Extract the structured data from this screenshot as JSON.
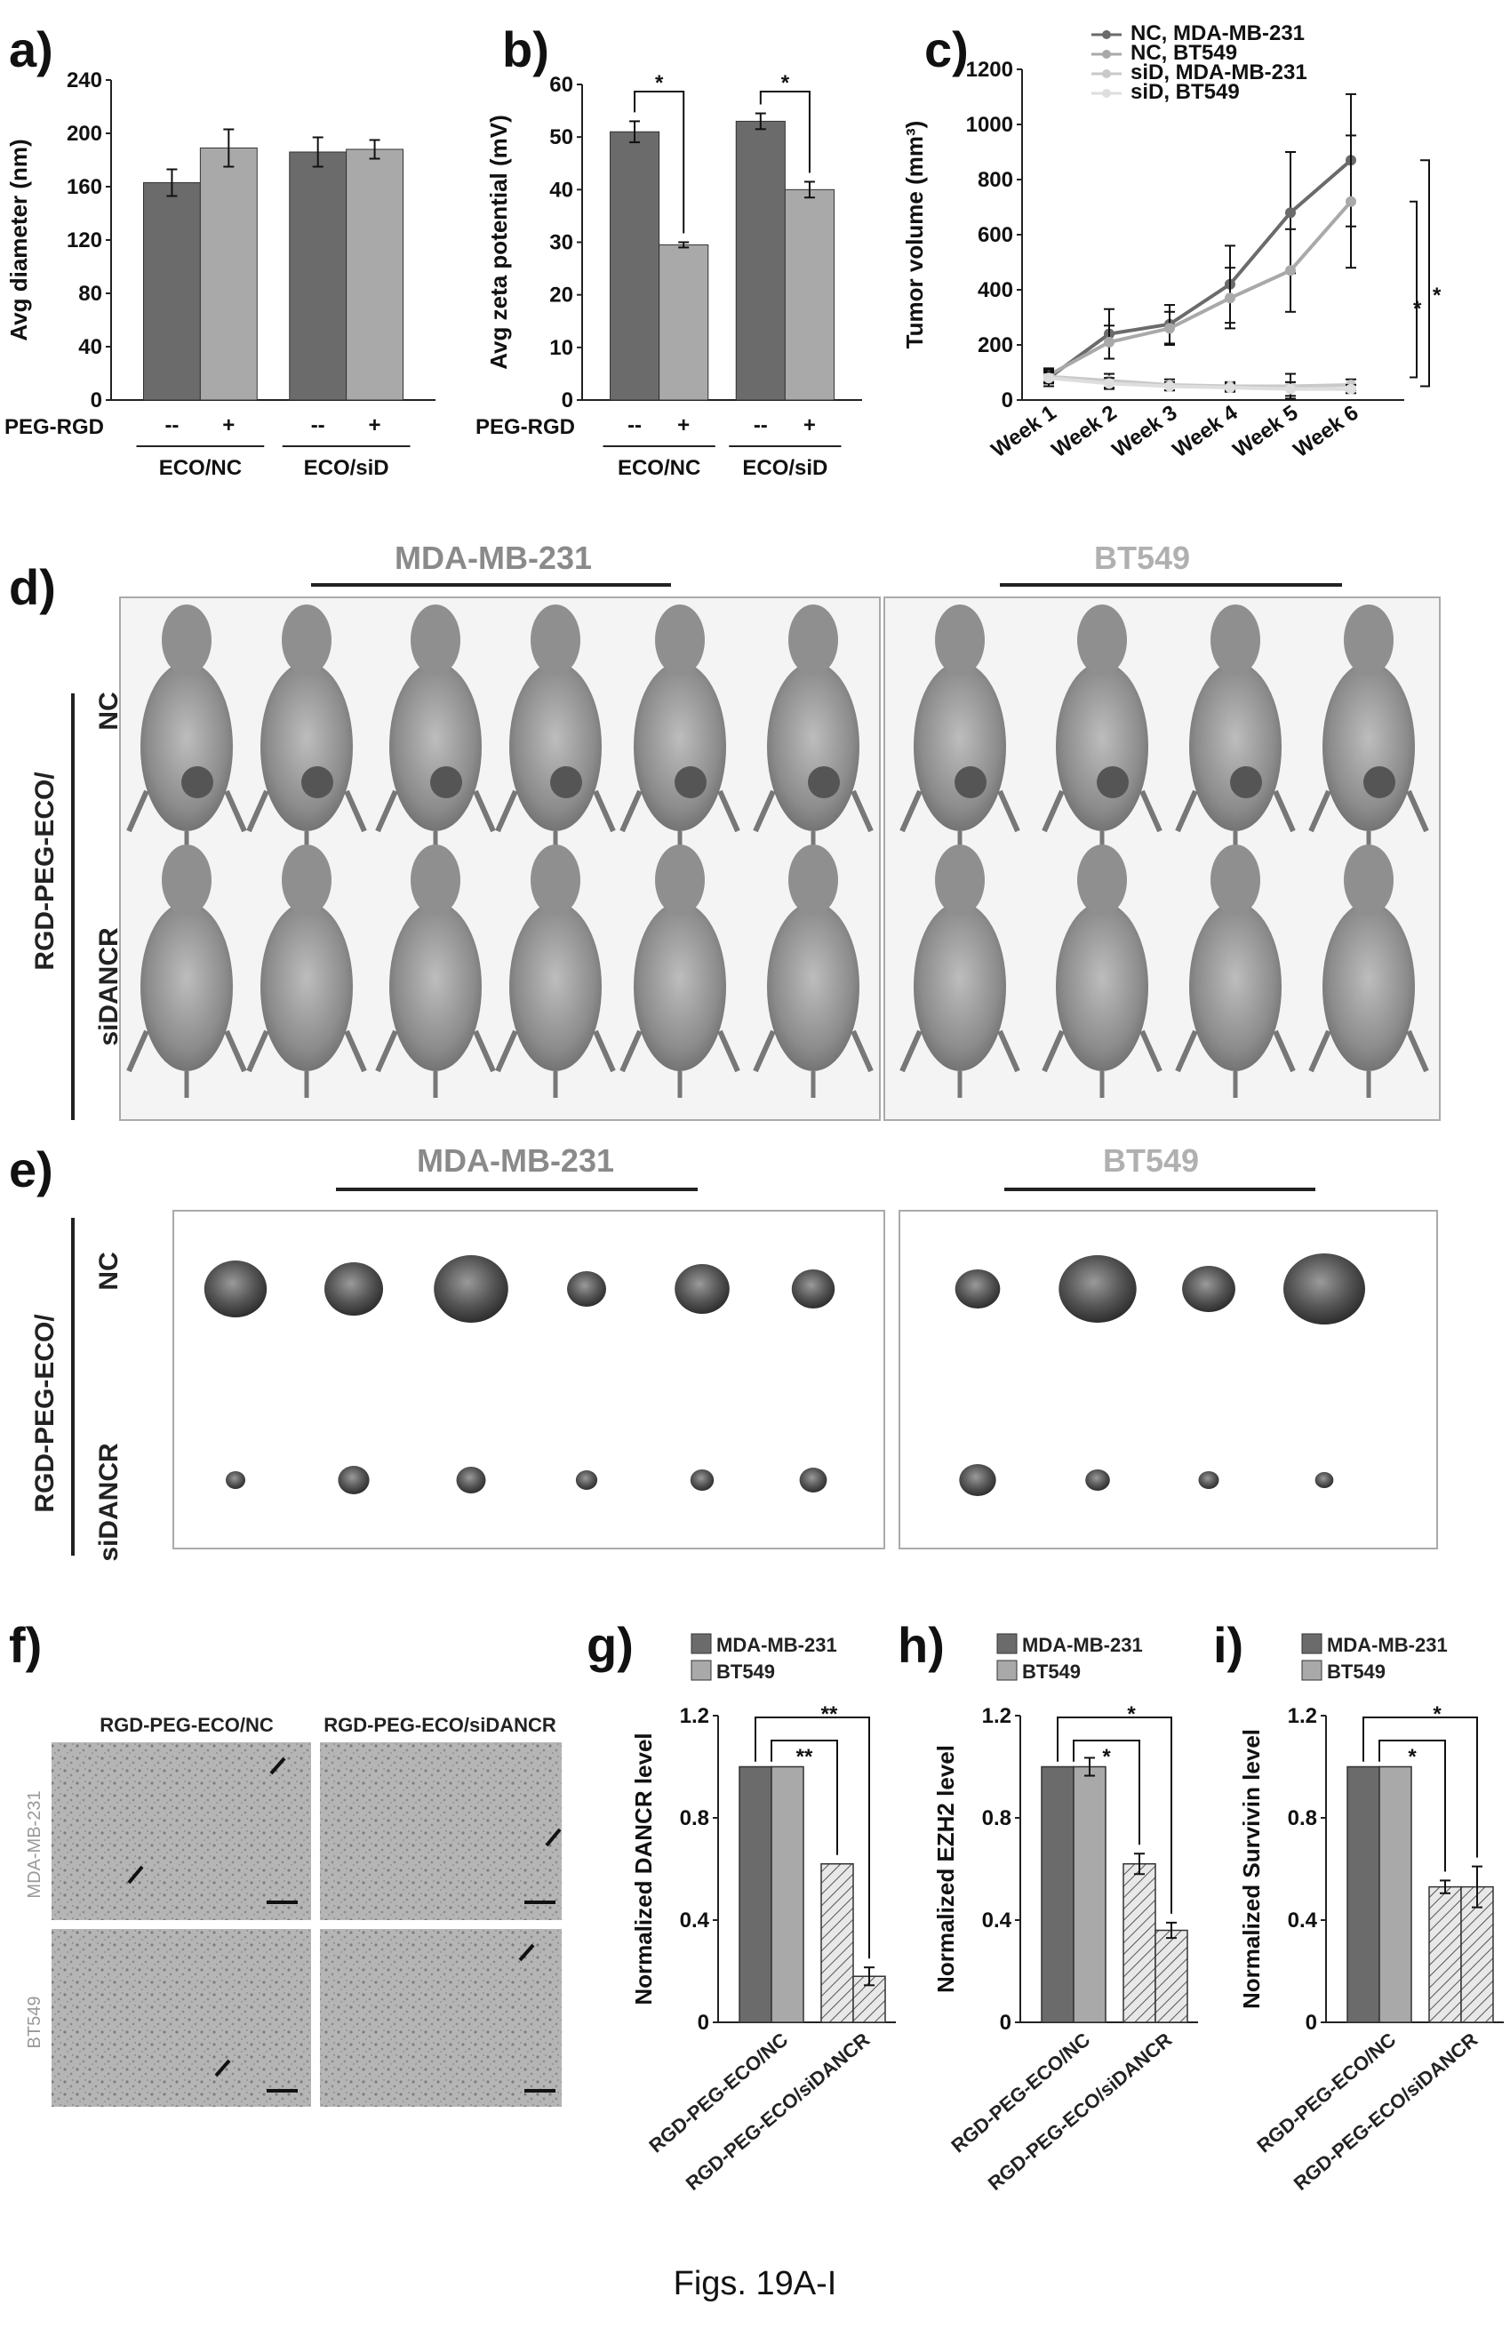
{
  "caption": "Figs. 19A-I",
  "panels": {
    "a": "a)",
    "b": "b)",
    "c": "c)",
    "d": "d)",
    "e": "e)",
    "f": "f)",
    "g": "g)",
    "h": "h)",
    "i": "i)"
  },
  "colors": {
    "mda": "#6b6b6b",
    "bt": "#a9a9a9",
    "light1": "#c9c9c9",
    "light2": "#dedede"
  },
  "chart_data": [
    {
      "id": "a",
      "type": "bar",
      "ylabel": "Avg diameter (nm)",
      "ylim": [
        0,
        240
      ],
      "yticks": [
        "0",
        "40",
        "80",
        "120",
        "160",
        "200",
        "240"
      ],
      "row_label": "PEG-RGD",
      "signs": [
        "--",
        "+",
        "--",
        "+"
      ],
      "groups": [
        "ECO/NC",
        "ECO/siD"
      ],
      "values": [
        163,
        189,
        186,
        188
      ],
      "errors": [
        10,
        14,
        11,
        7
      ]
    },
    {
      "id": "b",
      "type": "bar",
      "ylabel": "Avg zeta potential (mV)",
      "ylim": [
        0,
        60
      ],
      "yticks": [
        "0",
        "10",
        "20",
        "30",
        "40",
        "50",
        "60"
      ],
      "row_label": "PEG-RGD",
      "signs": [
        "--",
        "+",
        "--",
        "+"
      ],
      "groups": [
        "ECO/NC",
        "ECO/siD"
      ],
      "values": [
        51,
        29.5,
        53,
        40
      ],
      "errors": [
        2,
        0.5,
        1.5,
        1.5
      ],
      "significance": [
        "*",
        "*"
      ]
    },
    {
      "id": "c",
      "type": "line",
      "ylabel": "Tumor volume (mm³)",
      "ylim": [
        0,
        1200
      ],
      "yticks": [
        "0",
        "200",
        "400",
        "600",
        "800",
        "1000",
        "1200"
      ],
      "x": [
        "Week 1",
        "Week 2",
        "Week 3",
        "Week 4",
        "Week 5",
        "Week 6"
      ],
      "series": [
        {
          "name": "NC, MDA-MB-231",
          "values": [
            80,
            240,
            275,
            420,
            680,
            870
          ],
          "errors": [
            30,
            90,
            70,
            140,
            220,
            240
          ]
        },
        {
          "name": "NC, BT549",
          "values": [
            90,
            210,
            260,
            370,
            470,
            720
          ],
          "errors": [
            25,
            60,
            60,
            110,
            150,
            240
          ]
        },
        {
          "name": "siD, MDA-MB-231",
          "values": [
            85,
            70,
            55,
            50,
            50,
            55
          ],
          "errors": [
            20,
            25,
            20,
            15,
            45,
            20
          ]
        },
        {
          "name": "siD, BT549",
          "values": [
            80,
            60,
            50,
            45,
            40,
            40
          ],
          "errors": [
            20,
            20,
            15,
            15,
            25,
            15
          ]
        }
      ],
      "significance": [
        "*",
        "*"
      ]
    },
    {
      "id": "g",
      "type": "bar",
      "ylabel": "Normalized DANCR level",
      "ylim": [
        0,
        1.2
      ],
      "yticks": [
        "0",
        "0.4",
        "0.8",
        "1.2"
      ],
      "categories": [
        "RGD-PEG-ECO/NC",
        "RGD-PEG-ECO/siDANCR"
      ],
      "series": [
        {
          "name": "MDA-MB-231",
          "values": [
            1.0,
            0.62
          ],
          "errors": [
            0,
            0
          ]
        },
        {
          "name": "BT549",
          "values": [
            1.0,
            0.18
          ],
          "errors": [
            0,
            0.035
          ]
        }
      ],
      "significance": [
        "**",
        "**"
      ]
    },
    {
      "id": "h",
      "type": "bar",
      "ylabel": "Normalized EZH2 level",
      "ylim": [
        0,
        1.2
      ],
      "yticks": [
        "0",
        "0.4",
        "0.8",
        "1.2"
      ],
      "categories": [
        "RGD-PEG-ECO/NC",
        "RGD-PEG-ECO/siDANCR"
      ],
      "series": [
        {
          "name": "MDA-MB-231",
          "values": [
            1.0,
            0.62
          ],
          "errors": [
            0,
            0.04
          ]
        },
        {
          "name": "BT549",
          "values": [
            1.0,
            0.36
          ],
          "errors": [
            0.035,
            0.03
          ]
        }
      ],
      "significance": [
        "*",
        "*"
      ]
    },
    {
      "id": "i",
      "type": "bar",
      "ylabel": "Normalized Survivin level",
      "ylim": [
        0,
        1.2
      ],
      "yticks": [
        "0",
        "0.4",
        "0.8",
        "1.2"
      ],
      "categories": [
        "RGD-PEG-ECO/NC",
        "RGD-PEG-ECO/siDANCR"
      ],
      "series": [
        {
          "name": "MDA-MB-231",
          "values": [
            1.0,
            0.53
          ],
          "errors": [
            0,
            0.025
          ]
        },
        {
          "name": "BT549",
          "values": [
            1.0,
            0.53
          ],
          "errors": [
            0,
            0.08
          ]
        }
      ],
      "significance": [
        "*",
        "*"
      ]
    }
  ],
  "photos": {
    "side_label_top": "RGD-PEG-ECO/",
    "side_label_bottom": "siDANCR",
    "row_nc": "NC",
    "row_si": "siDANCR",
    "mda_title": "MDA-MB-231",
    "bt_title": "BT549"
  },
  "histology": {
    "col1": "RGD-PEG-ECO/NC",
    "col2": "RGD-PEG-ECO/siDANCR",
    "row1": "MDA-MB-231",
    "row2": "BT549"
  }
}
